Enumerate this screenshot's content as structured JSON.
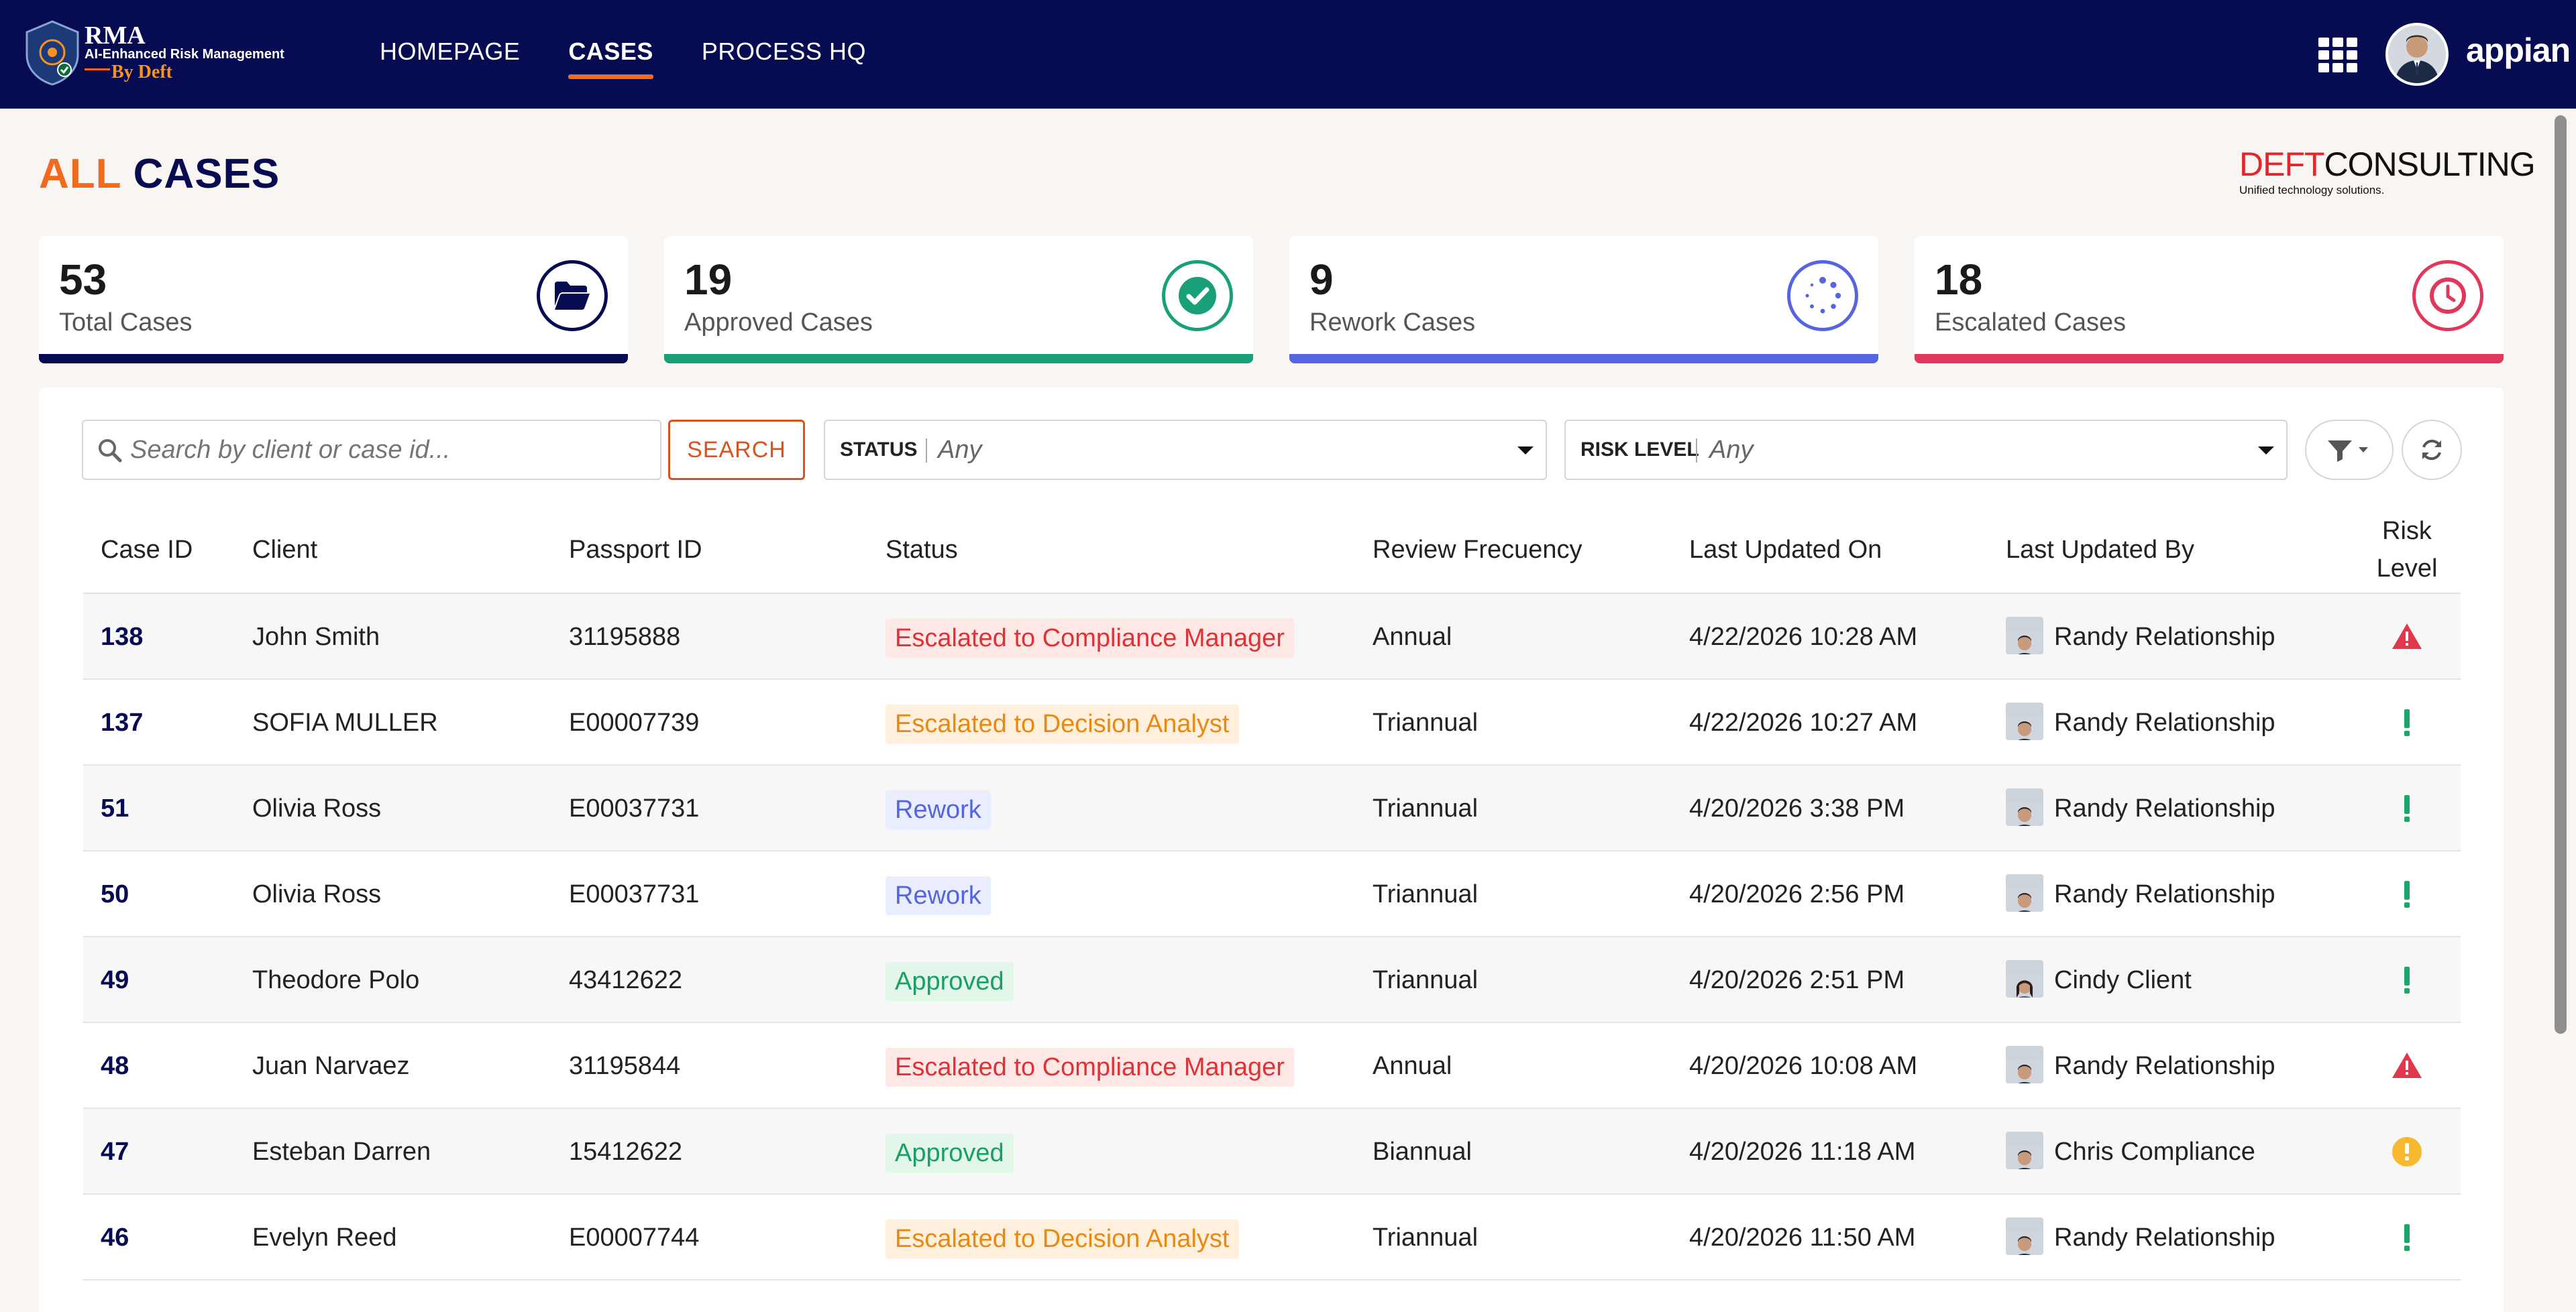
{
  "app": {
    "logo_title": "RMA",
    "logo_subtitle": "AI-Enhanced Risk Management",
    "logo_by": "By Deft",
    "brand": "appian"
  },
  "nav": {
    "items": [
      {
        "label": "HOMEPAGE",
        "active": false
      },
      {
        "label": "CASES",
        "active": true
      },
      {
        "label": "PROCESS HQ",
        "active": false
      }
    ]
  },
  "page": {
    "title_accent": "ALL",
    "title_main": "CASES",
    "partner_logo_a": "DEFT",
    "partner_logo_b": "CONSULTING",
    "partner_tagline": "Unified technology solutions."
  },
  "stats": [
    {
      "value": "53",
      "label": "Total Cases",
      "color": "#070c52",
      "icon": "folder-open-icon"
    },
    {
      "value": "19",
      "label": "Approved Cases",
      "color": "#19a07a",
      "icon": "check-circle-icon"
    },
    {
      "value": "9",
      "label": "Rework Cases",
      "color": "#5564e0",
      "icon": "spinner-icon"
    },
    {
      "value": "18",
      "label": "Escalated Cases",
      "color": "#e0375a",
      "icon": "clock-icon"
    }
  ],
  "filters": {
    "search_placeholder": "Search by client or case id...",
    "search_button": "SEARCH",
    "status_label": "STATUS",
    "status_value": "Any",
    "risk_label": "RISK LEVEL",
    "risk_value": "Any"
  },
  "table": {
    "columns": [
      "Case ID",
      "Client",
      "Passport ID",
      "Status",
      "Review Frecuency",
      "Last Updated On",
      "Last Updated By",
      "Risk Level"
    ],
    "rows": [
      {
        "id": "138",
        "client": "John Smith",
        "passport": "31195888",
        "status": "Escalated to Compliance Manager",
        "status_type": "comp",
        "freq": "Annual",
        "updated_on": "4/22/2026 10:28 AM",
        "updated_by": "Randy Relationship",
        "risk": "high"
      },
      {
        "id": "137",
        "client": "SOFIA MULLER",
        "passport": "E00007739",
        "status": "Escalated to Decision Analyst",
        "status_type": "dec",
        "freq": "Triannual",
        "updated_on": "4/22/2026 10:27 AM",
        "updated_by": "Randy Relationship",
        "risk": "low"
      },
      {
        "id": "51",
        "client": "Olivia Ross",
        "passport": "E00037731",
        "status": "Rework",
        "status_type": "rew",
        "freq": "Triannual",
        "updated_on": "4/20/2026 3:38 PM",
        "updated_by": "Randy Relationship",
        "risk": "low"
      },
      {
        "id": "50",
        "client": "Olivia Ross",
        "passport": "E00037731",
        "status": "Rework",
        "status_type": "rew",
        "freq": "Triannual",
        "updated_on": "4/20/2026 2:56 PM",
        "updated_by": "Randy Relationship",
        "risk": "low"
      },
      {
        "id": "49",
        "client": "Theodore Polo",
        "passport": "43412622",
        "status": "Approved",
        "status_type": "app",
        "freq": "Triannual",
        "updated_on": "4/20/2026 2:51 PM",
        "updated_by": "Cindy Client",
        "risk": "low"
      },
      {
        "id": "48",
        "client": "Juan Narvaez",
        "passport": "31195844",
        "status": "Escalated to Compliance Manager",
        "status_type": "comp",
        "freq": "Annual",
        "updated_on": "4/20/2026 10:08 AM",
        "updated_by": "Randy Relationship",
        "risk": "high"
      },
      {
        "id": "47",
        "client": "Esteban Darren",
        "passport": "15412622",
        "status": "Approved",
        "status_type": "app",
        "freq": "Biannual",
        "updated_on": "4/20/2026 11:18 AM",
        "updated_by": "Chris Compliance",
        "risk": "medium"
      },
      {
        "id": "46",
        "client": "Evelyn Reed",
        "passport": "E00007744",
        "status": "Escalated to Decision Analyst",
        "status_type": "dec",
        "freq": "Triannual",
        "updated_on": "4/20/2026 11:50 AM",
        "updated_by": "Randy Relationship",
        "risk": "low"
      }
    ]
  }
}
